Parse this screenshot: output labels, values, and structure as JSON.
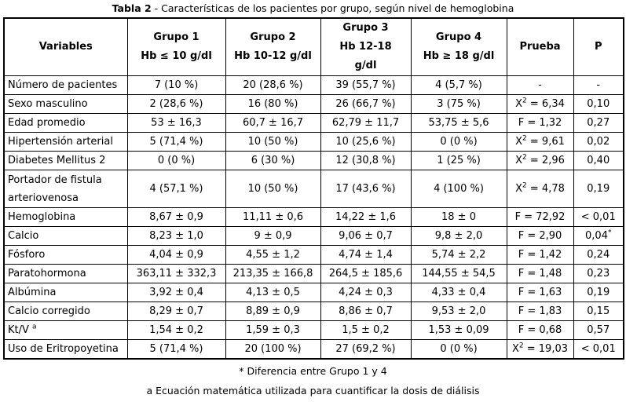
{
  "title": {
    "label": "Tabla 2",
    "text": " - Características de los pacientes por grupo, según nivel de hemoglobina"
  },
  "table": {
    "headers": [
      {
        "name": "variables",
        "lines": [
          "Variables"
        ]
      },
      {
        "name": "grupo-1",
        "lines": [
          "Grupo 1",
          "Hb ≤ 10 g/dl"
        ]
      },
      {
        "name": "grupo-2",
        "lines": [
          "Grupo 2",
          "Hb 10-12 g/dl"
        ]
      },
      {
        "name": "grupo-3",
        "lines": [
          "Grupo 3",
          "Hb 12-18",
          "g/dl"
        ]
      },
      {
        "name": "grupo-4",
        "lines": [
          "Grupo 4",
          "Hb ≥ 18 g/dl"
        ]
      },
      {
        "name": "prueba",
        "lines": [
          "Prueba"
        ]
      },
      {
        "name": "p",
        "lines": [
          "P"
        ]
      }
    ],
    "rows": [
      {
        "cells": [
          [
            {
              "t": "Número de pacientes"
            }
          ],
          [
            {
              "t": "7 (10 %)"
            }
          ],
          [
            {
              "t": "20 (28,6 %)"
            }
          ],
          [
            {
              "t": "39 (55,7 %)"
            }
          ],
          [
            {
              "t": "4 (5,7 %)"
            }
          ],
          [
            {
              "t": "-"
            }
          ],
          [
            {
              "t": "-"
            }
          ]
        ]
      },
      {
        "cells": [
          [
            {
              "t": "Sexo masculino"
            }
          ],
          [
            {
              "t": "2 (28,6 %)"
            }
          ],
          [
            {
              "t": "16 (80 %)"
            }
          ],
          [
            {
              "t": "26 (66,7 %)"
            }
          ],
          [
            {
              "t": "3 (75 %)"
            }
          ],
          [
            {
              "t": "X"
            },
            {
              "sup": "2"
            },
            {
              "t": " = 6,34"
            }
          ],
          [
            {
              "t": "0,10"
            }
          ]
        ]
      },
      {
        "cells": [
          [
            {
              "t": "Edad promedio"
            }
          ],
          [
            {
              "t": "53 ± 16,3"
            }
          ],
          [
            {
              "t": "60,7 ± 16,7"
            }
          ],
          [
            {
              "t": "62,79 ± 11,7"
            }
          ],
          [
            {
              "t": "53,75 ± 5,6"
            }
          ],
          [
            {
              "t": "F = 1,32"
            }
          ],
          [
            {
              "t": "0,27"
            }
          ]
        ]
      },
      {
        "cells": [
          [
            {
              "t": "Hipertensión arterial"
            }
          ],
          [
            {
              "t": "5 (71,4 %)"
            }
          ],
          [
            {
              "t": "10 (50 %)"
            }
          ],
          [
            {
              "t": "10 (25,6 %)"
            }
          ],
          [
            {
              "t": "0 (0 %)"
            }
          ],
          [
            {
              "t": "X"
            },
            {
              "sup": "2"
            },
            {
              "t": " = 9,61"
            }
          ],
          [
            {
              "t": "0,02"
            }
          ]
        ]
      },
      {
        "cells": [
          [
            {
              "t": "Diabetes Mellitus 2"
            }
          ],
          [
            {
              "t": "0 (0 %)"
            }
          ],
          [
            {
              "t": "6 (30 %)"
            }
          ],
          [
            {
              "t": "12 (30,8 %)"
            }
          ],
          [
            {
              "t": "1 (25 %)"
            }
          ],
          [
            {
              "t": "X"
            },
            {
              "sup": "2"
            },
            {
              "t": " = 2,96"
            }
          ],
          [
            {
              "t": "0,40"
            }
          ]
        ]
      },
      {
        "tall": true,
        "cells": [
          [
            {
              "t": "Portador de fistula arteriovenosa"
            }
          ],
          [
            {
              "t": "4 (57,1 %)"
            }
          ],
          [
            {
              "t": "10 (50 %)"
            }
          ],
          [
            {
              "t": "17 (43,6 %)"
            }
          ],
          [
            {
              "t": "4 (100 %)"
            }
          ],
          [
            {
              "t": "X"
            },
            {
              "sup": "2"
            },
            {
              "t": " = 4,78"
            }
          ],
          [
            {
              "t": "0,19"
            }
          ]
        ]
      },
      {
        "cells": [
          [
            {
              "t": "Hemoglobina"
            }
          ],
          [
            {
              "t": "8,67 ± 0,9"
            }
          ],
          [
            {
              "t": "11,11 ± 0,6"
            }
          ],
          [
            {
              "t": "14,22 ± 1,6"
            }
          ],
          [
            {
              "t": "18 ± 0"
            }
          ],
          [
            {
              "t": "F = 72,92"
            }
          ],
          [
            {
              "t": "< 0,01"
            }
          ]
        ]
      },
      {
        "cells": [
          [
            {
              "t": "Calcio"
            }
          ],
          [
            {
              "t": "8,23 ± 1,0"
            }
          ],
          [
            {
              "t": "9 ± 0,9"
            }
          ],
          [
            {
              "t": "9,06 ± 0,7"
            }
          ],
          [
            {
              "t": "9,8 ± 2,0"
            }
          ],
          [
            {
              "t": "F = 2,90"
            }
          ],
          [
            {
              "t": "0,04"
            },
            {
              "sup": "*"
            }
          ]
        ]
      },
      {
        "cells": [
          [
            {
              "t": "Fósforo"
            }
          ],
          [
            {
              "t": "4,04 ± 0,9"
            }
          ],
          [
            {
              "t": "4,55 ± 1,2"
            }
          ],
          [
            {
              "t": "4,74 ± 1,4"
            }
          ],
          [
            {
              "t": "5,74 ± 2,2"
            }
          ],
          [
            {
              "t": "F = 1,42"
            }
          ],
          [
            {
              "t": "0,24"
            }
          ]
        ]
      },
      {
        "cells": [
          [
            {
              "t": "Paratohormona"
            }
          ],
          [
            {
              "t": "363,11 ± 332,3"
            }
          ],
          [
            {
              "t": "213,35 ± 166,8"
            }
          ],
          [
            {
              "t": "264,5 ± 185,6"
            }
          ],
          [
            {
              "t": "144,55 ± 54,5"
            }
          ],
          [
            {
              "t": "F = 1,48"
            }
          ],
          [
            {
              "t": "0,23"
            }
          ]
        ]
      },
      {
        "cells": [
          [
            {
              "t": "Albúmina"
            }
          ],
          [
            {
              "t": "3,92 ± 0,4"
            }
          ],
          [
            {
              "t": "4,13 ± 0,5"
            }
          ],
          [
            {
              "t": "4,24 ± 0,3"
            }
          ],
          [
            {
              "t": "4,33 ± 0,4"
            }
          ],
          [
            {
              "t": "F = 1,63"
            }
          ],
          [
            {
              "t": "0,19"
            }
          ]
        ]
      },
      {
        "cells": [
          [
            {
              "t": "Calcio corregido"
            }
          ],
          [
            {
              "t": "8,29 ± 0,7"
            }
          ],
          [
            {
              "t": "8,89 ± 0,9"
            }
          ],
          [
            {
              "t": "8,86 ± 0,7"
            }
          ],
          [
            {
              "t": "9,53 ± 2,0"
            }
          ],
          [
            {
              "t": "F = 1,83"
            }
          ],
          [
            {
              "t": "0,15"
            }
          ]
        ]
      },
      {
        "cells": [
          [
            {
              "t": "Kt/V "
            },
            {
              "sup": "a"
            }
          ],
          [
            {
              "t": "1,54 ± 0,2"
            }
          ],
          [
            {
              "t": "1,59 ± 0,3"
            }
          ],
          [
            {
              "t": "1,5 ± 0,2"
            }
          ],
          [
            {
              "t": "1,53 ± 0,09"
            }
          ],
          [
            {
              "t": "F = 0,68"
            }
          ],
          [
            {
              "t": "0,57"
            }
          ]
        ]
      },
      {
        "cells": [
          [
            {
              "t": "Uso de Eritropoyetina"
            }
          ],
          [
            {
              "t": "5 (71,4 %)"
            }
          ],
          [
            {
              "t": "20 (100 %)"
            }
          ],
          [
            {
              "t": "27 (69,2 %)"
            }
          ],
          [
            {
              "t": "0 (0 %)"
            }
          ],
          [
            {
              "t": "X"
            },
            {
              "sup": "2"
            },
            {
              "t": " = 19,03"
            }
          ],
          [
            {
              "t": "< 0,01"
            }
          ]
        ]
      }
    ]
  },
  "footnotes": [
    "* Diferencia entre Grupo 1 y 4",
    "a Ecuación matemática utilizada para cuantificar la dosis de diálisis"
  ],
  "colors": {
    "text": "#000000",
    "border": "#000000",
    "background": "#ffffff"
  }
}
